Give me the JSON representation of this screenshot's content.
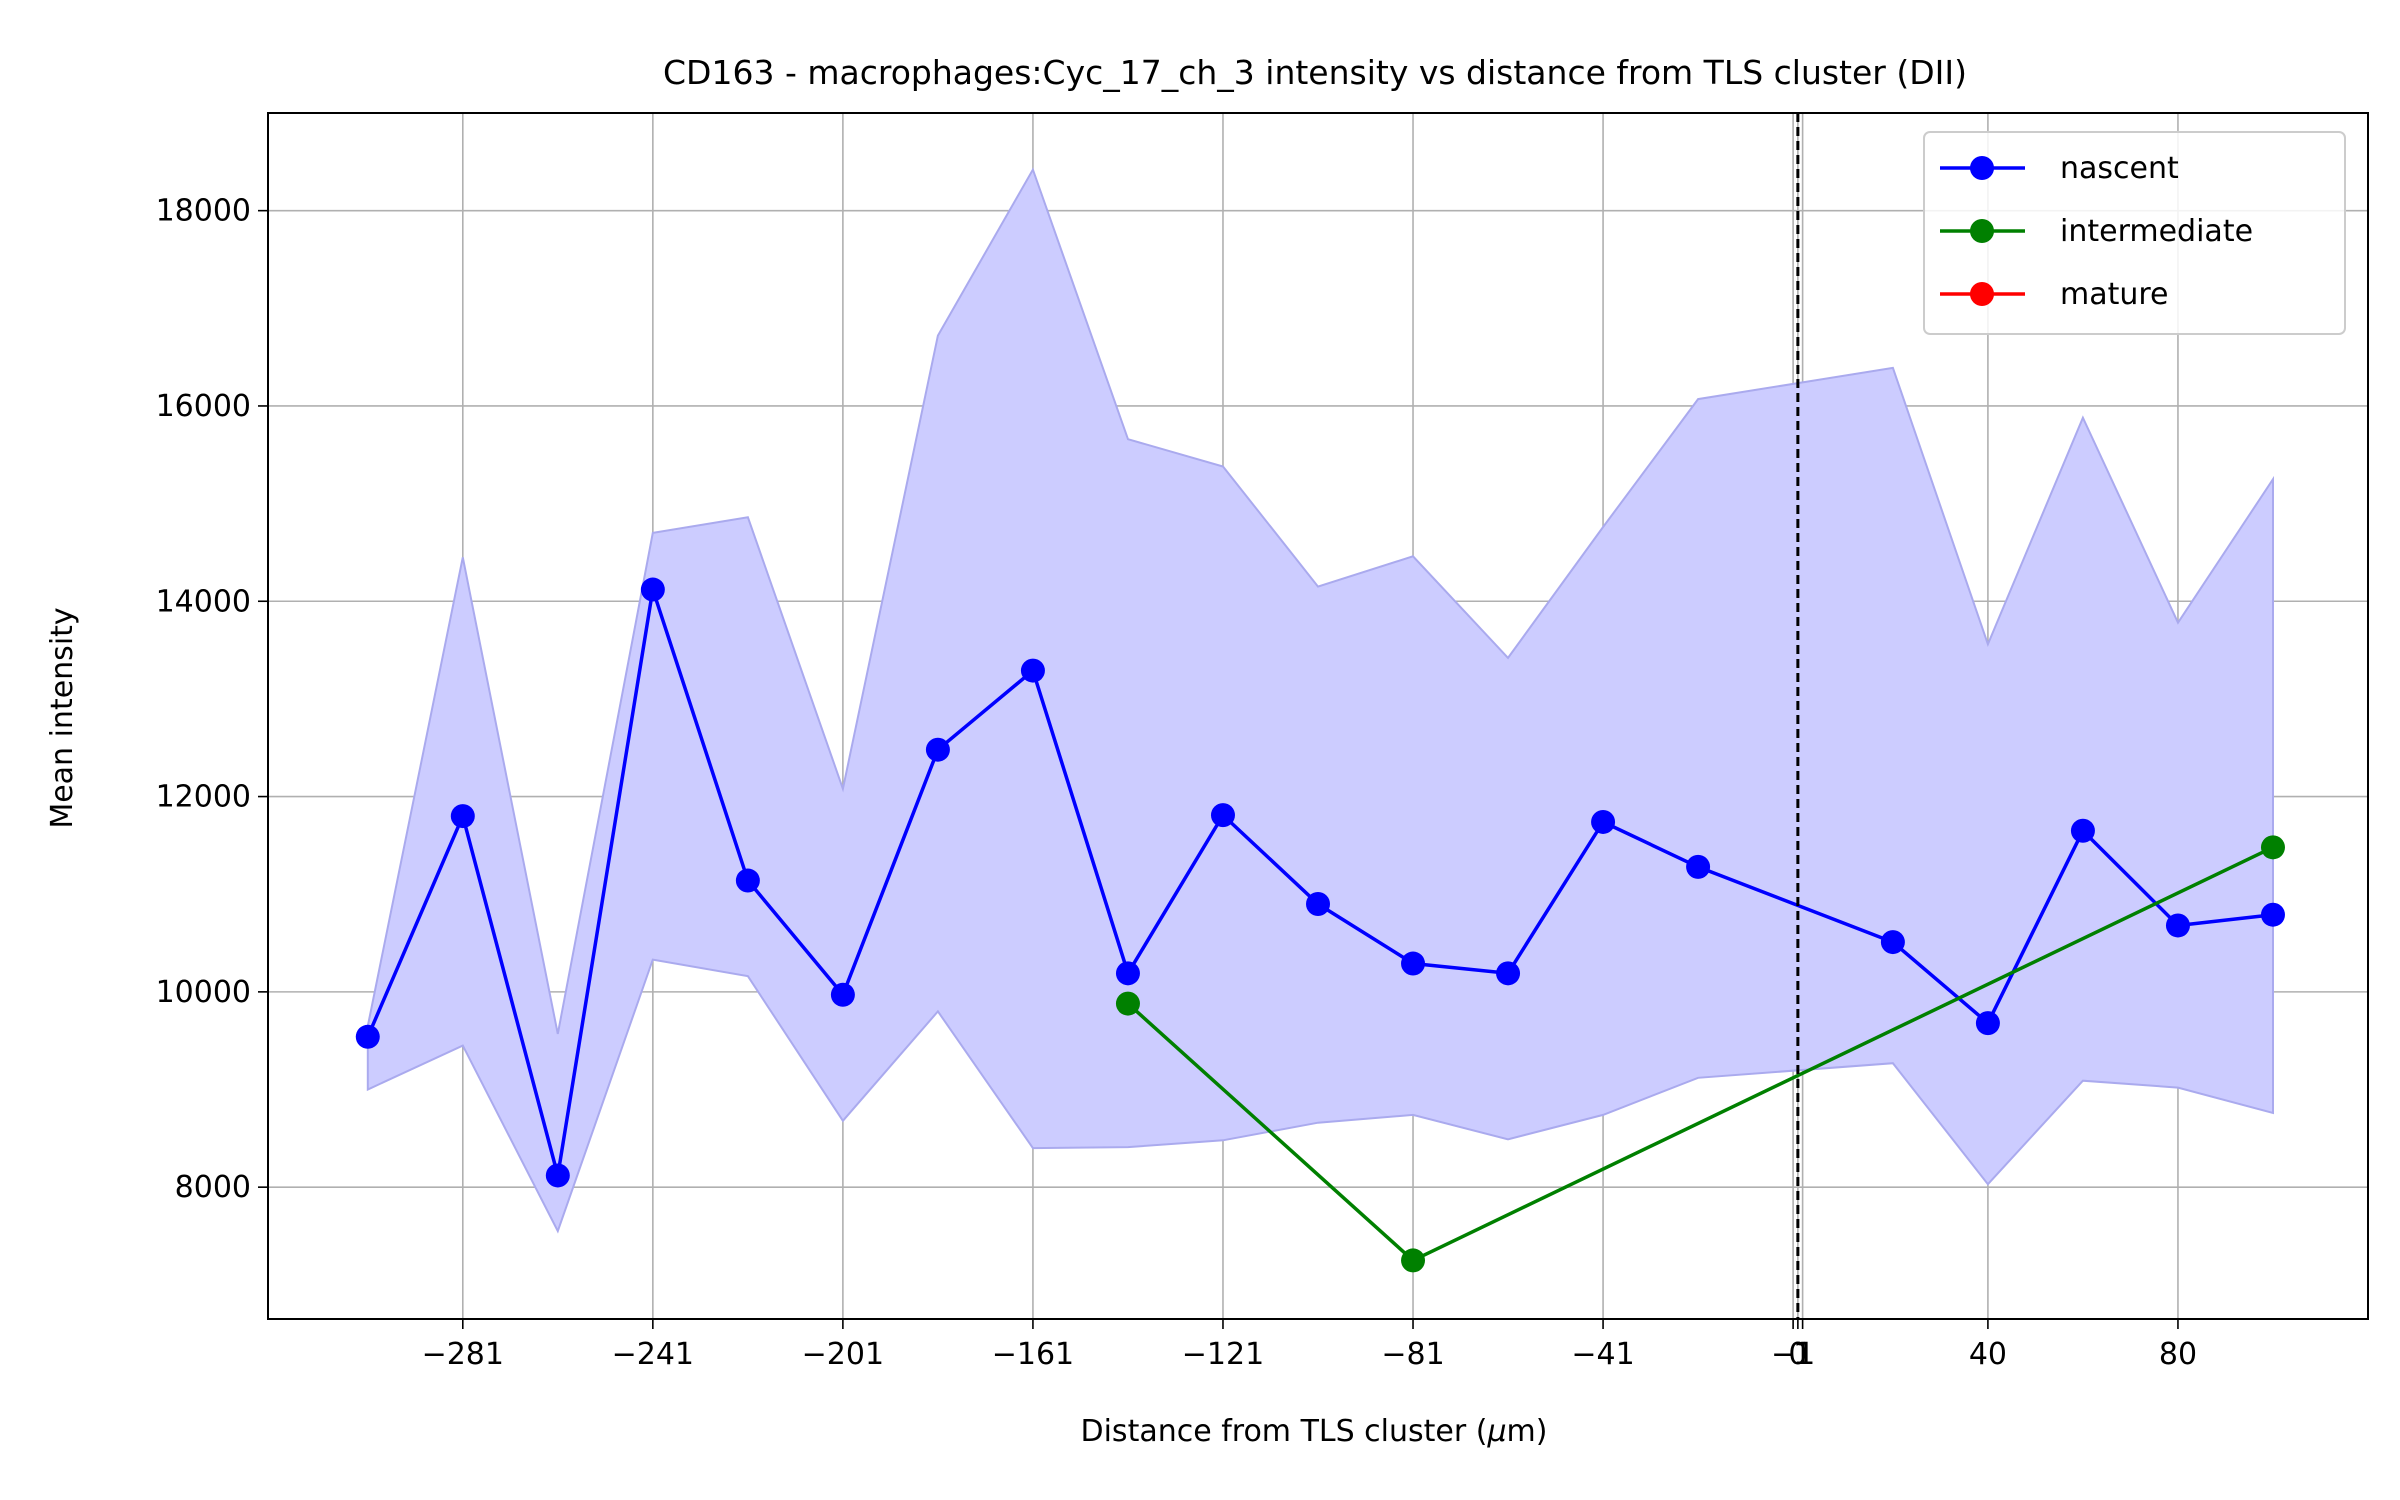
{
  "chart_data": {
    "type": "line",
    "title": "CD163 - macrophages:Cyc_17_ch_3 intensity vs distance from TLS cluster (DII)",
    "xlabel_prefix": "Distance from TLS cluster (",
    "xlabel_mu": "μ",
    "xlabel_suffix": "m)",
    "ylabel": "Mean intensity",
    "xlim": [
      -322,
      120
    ],
    "ylim": [
      6650,
      19000
    ],
    "grid": true,
    "legend_position": "upper right",
    "x_ticks": [
      {
        "value": -281,
        "label": "−281"
      },
      {
        "value": -241,
        "label": "−241"
      },
      {
        "value": -201,
        "label": "−201"
      },
      {
        "value": -161,
        "label": "−161"
      },
      {
        "value": -121,
        "label": "−121"
      },
      {
        "value": -81,
        "label": "−81"
      },
      {
        "value": -41,
        "label": "−41"
      },
      {
        "value": -1,
        "label": "−1"
      },
      {
        "value": 0,
        "label": "0"
      },
      {
        "value": 1,
        "label": "1"
      },
      {
        "value": 40,
        "label": "40"
      },
      {
        "value": 80,
        "label": "80"
      }
    ],
    "y_ticks": [
      {
        "value": 8000,
        "label": "8000"
      },
      {
        "value": 10000,
        "label": "10000"
      },
      {
        "value": 12000,
        "label": "12000"
      },
      {
        "value": 14000,
        "label": "14000"
      },
      {
        "value": 16000,
        "label": "16000"
      },
      {
        "value": 18000,
        "label": "18000"
      }
    ],
    "reference_line_x": 0,
    "band": {
      "color": "#ccccff",
      "edge_color": "#aaaaee",
      "x": [
        -301,
        -281,
        -261,
        -241,
        -221,
        -201,
        -181,
        -161,
        -141,
        -121,
        -101,
        -81,
        -61,
        -41,
        -21,
        20,
        40,
        60,
        80,
        100
      ],
      "lower": [
        9000,
        9450,
        7550,
        10330,
        10160,
        8680,
        9800,
        8400,
        8410,
        8480,
        8660,
        8740,
        8490,
        8740,
        9120,
        9270,
        8030,
        9090,
        9020,
        8760
      ],
      "upper": [
        9650,
        14450,
        9570,
        14700,
        14860,
        12080,
        16720,
        18420,
        15660,
        15380,
        14150,
        14460,
        13420,
        14760,
        16070,
        16390,
        13560,
        15880,
        13780,
        15250
      ]
    },
    "series": [
      {
        "name": "nascent",
        "color": "#0000ff",
        "x": [
          -301,
          -281,
          -261,
          -241,
          -221,
          -201,
          -181,
          -161,
          -141,
          -121,
          -101,
          -81,
          -61,
          -41,
          -21,
          20,
          40,
          60,
          80,
          100
        ],
        "y": [
          9540,
          11800,
          8120,
          14120,
          11140,
          9970,
          12480,
          13290,
          10190,
          11810,
          10900,
          10290,
          10190,
          11740,
          11280,
          10510,
          9680,
          11650,
          10680,
          10790
        ]
      },
      {
        "name": "intermediate",
        "color": "#008000",
        "x": [
          -141,
          -81,
          100
        ],
        "y": [
          9880,
          7250,
          11480
        ]
      },
      {
        "name": "mature",
        "color": "#ff0000",
        "x": [],
        "y": []
      }
    ]
  }
}
